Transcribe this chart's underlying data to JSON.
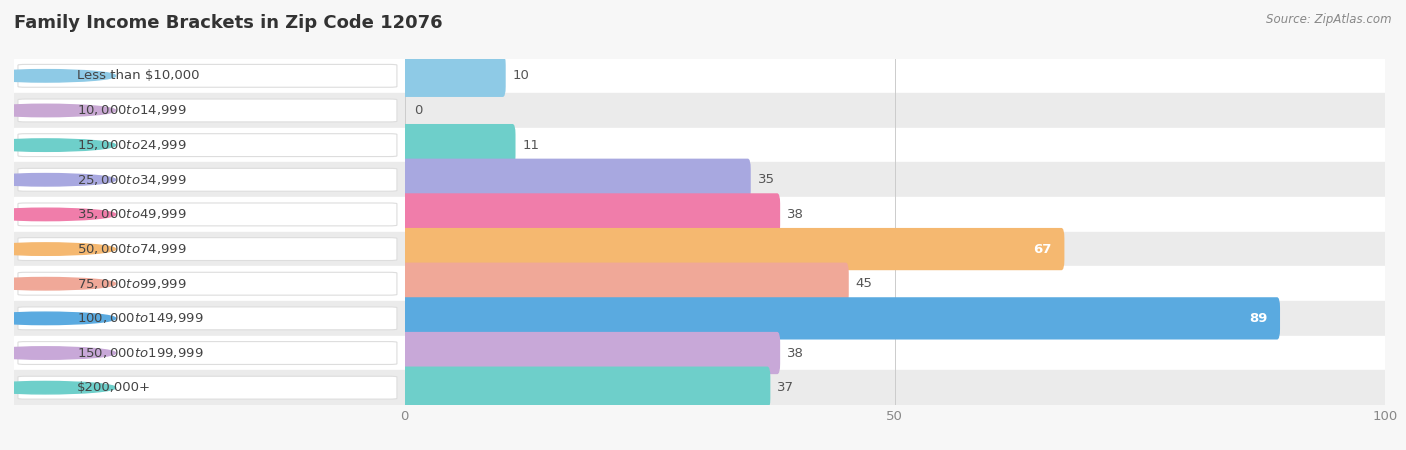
{
  "title": "Family Income Brackets in Zip Code 12076",
  "source_text": "Source: ZipAtlas.com",
  "categories": [
    "Less than $10,000",
    "$10,000 to $14,999",
    "$15,000 to $24,999",
    "$25,000 to $34,999",
    "$35,000 to $49,999",
    "$50,000 to $74,999",
    "$75,000 to $99,999",
    "$100,000 to $149,999",
    "$150,000 to $199,999",
    "$200,000+"
  ],
  "values": [
    10,
    0,
    11,
    35,
    38,
    67,
    45,
    89,
    38,
    37
  ],
  "bar_colors": [
    "#8ecae6",
    "#c9a8d4",
    "#6ecfca",
    "#a8a8e0",
    "#f07daa",
    "#f5b870",
    "#f0a898",
    "#5aaae0",
    "#c8a8d8",
    "#6ecfca"
  ],
  "value_inside": [
    false,
    false,
    false,
    false,
    false,
    true,
    false,
    true,
    false,
    false
  ],
  "xlim": [
    0,
    100
  ],
  "background_color": "#f7f7f7",
  "title_fontsize": 13,
  "label_fontsize": 9.5,
  "value_fontsize": 9.5
}
